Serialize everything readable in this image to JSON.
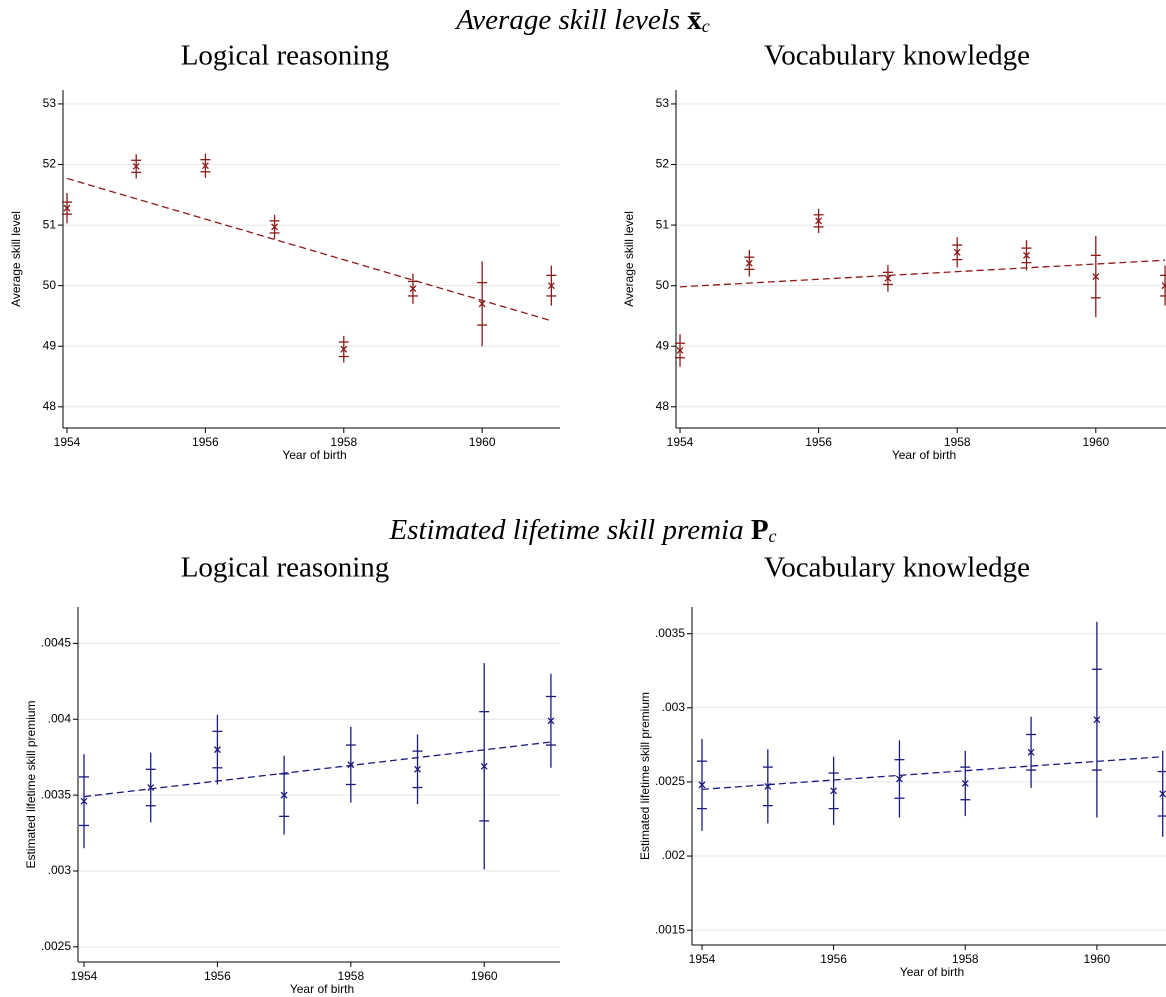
{
  "section_titles": [
    {
      "text": "Average skill levels",
      "symbol": "x̄",
      "subscript": "c"
    },
    {
      "text": "Estimated lifetime skill premia",
      "symbol": "P",
      "subscript": "c"
    }
  ],
  "chart_data": [
    {
      "type": "scatter",
      "title": "Logical reasoning",
      "xlabel": "Year of birth",
      "ylabel": "Average skill level",
      "color": "#8b1a1a",
      "x": [
        1954,
        1955,
        1956,
        1957,
        1958,
        1959,
        1960,
        1961
      ],
      "values": [
        51.28,
        51.97,
        51.98,
        50.97,
        48.95,
        49.95,
        49.7,
        50.0
      ],
      "inner_errors": [
        0.1,
        0.1,
        0.1,
        0.1,
        0.12,
        0.12,
        0.35,
        0.17
      ],
      "outer_errors": [
        0.25,
        0.2,
        0.2,
        0.2,
        0.22,
        0.25,
        0.7,
        0.33
      ],
      "fit": {
        "x": [
          1954,
          1961
        ],
        "y": [
          51.77,
          49.42
        ]
      },
      "xlim": [
        1953.942,
        1961.125
      ],
      "ylim": [
        47.65,
        53.23
      ],
      "xticks": [
        1954,
        1956,
        1958,
        1960
      ],
      "yticks": [
        48,
        49,
        50,
        51,
        52,
        53
      ],
      "grid": true
    },
    {
      "type": "scatter",
      "title": "Vocabulary knowledge",
      "xlabel": "Year of birth",
      "ylabel": "Average skill level",
      "color": "#8b1a1a",
      "x": [
        1954,
        1955,
        1956,
        1957,
        1958,
        1959,
        1960,
        1961
      ],
      "values": [
        48.93,
        50.37,
        51.07,
        50.12,
        50.55,
        50.5,
        50.15,
        50.0
      ],
      "inner_errors": [
        0.12,
        0.1,
        0.1,
        0.1,
        0.12,
        0.12,
        0.35,
        0.17
      ],
      "outer_errors": [
        0.27,
        0.22,
        0.2,
        0.22,
        0.25,
        0.25,
        0.67,
        0.33
      ],
      "fit": {
        "x": [
          1954,
          1961
        ],
        "y": [
          49.98,
          50.42
        ]
      },
      "xlim": [
        1953.942,
        1961.013
      ],
      "ylim": [
        47.65,
        53.23
      ],
      "xticks": [
        1954,
        1956,
        1958,
        1960
      ],
      "yticks": [
        48,
        49,
        50,
        51,
        52,
        53
      ],
      "grid": true
    },
    {
      "type": "scatter",
      "title": "Logical reasoning",
      "xlabel": "Year of birth",
      "ylabel": "Estimated lifetime skill premium",
      "color": "#1a1a80",
      "x": [
        1954,
        1955,
        1956,
        1957,
        1958,
        1959,
        1960,
        1961
      ],
      "values": [
        0.00346,
        0.00355,
        0.0038,
        0.0035,
        0.0037,
        0.00367,
        0.00369,
        0.00399
      ],
      "inner_errors": [
        0.00016,
        0.00012,
        0.00012,
        0.00014,
        0.00013,
        0.00012,
        0.00036,
        0.00016
      ],
      "outer_errors": [
        0.00031,
        0.00023,
        0.00023,
        0.00026,
        0.00025,
        0.00023,
        0.00068,
        0.00031
      ],
      "fit": {
        "x": [
          1954,
          1961
        ],
        "y": [
          0.00349,
          0.00385
        ]
      },
      "xlim": [
        1953.91,
        1961.136
      ],
      "ylim": [
        0.0024,
        0.00474
      ],
      "xticks": [
        1954,
        1956,
        1958,
        1960
      ],
      "yticks": [
        {
          "value": 0.0025,
          "label": ".0025"
        },
        {
          "value": 0.003,
          "label": ".003"
        },
        {
          "value": 0.0035,
          "label": ".0035"
        },
        {
          "value": 0.004,
          "label": ".004"
        },
        {
          "value": 0.0045,
          "label": ".0045"
        }
      ],
      "grid": true
    },
    {
      "type": "scatter",
      "title": "Vocabulary knowledge",
      "xlabel": "Year of birth",
      "ylabel": "Estimated lifetime skill premium",
      "color": "#1a1a80",
      "x": [
        1954,
        1955,
        1956,
        1957,
        1958,
        1959,
        1960,
        1961
      ],
      "values": [
        0.00248,
        0.00247,
        0.00244,
        0.00252,
        0.00249,
        0.0027,
        0.00292,
        0.00242
      ],
      "inner_errors": [
        0.00016,
        0.00013,
        0.00012,
        0.00013,
        0.00011,
        0.00012,
        0.00034,
        0.00015
      ],
      "outer_errors": [
        0.00031,
        0.00025,
        0.00023,
        0.00026,
        0.00022,
        0.00024,
        0.00066,
        0.00029
      ],
      "fit": {
        "x": [
          1954,
          1961
        ],
        "y": [
          0.00245,
          0.00267
        ]
      },
      "xlim": [
        1953.848,
        1961.05
      ],
      "ylim": [
        0.0014,
        0.00368
      ],
      "xticks": [
        1954,
        1956,
        1958,
        1960
      ],
      "yticks": [
        {
          "value": 0.0015,
          "label": ".0015"
        },
        {
          "value": 0.002,
          "label": ".002"
        },
        {
          "value": 0.0025,
          "label": ".0025"
        },
        {
          "value": 0.003,
          "label": ".003"
        },
        {
          "value": 0.0035,
          "label": ".0035"
        }
      ],
      "grid": true
    }
  ]
}
